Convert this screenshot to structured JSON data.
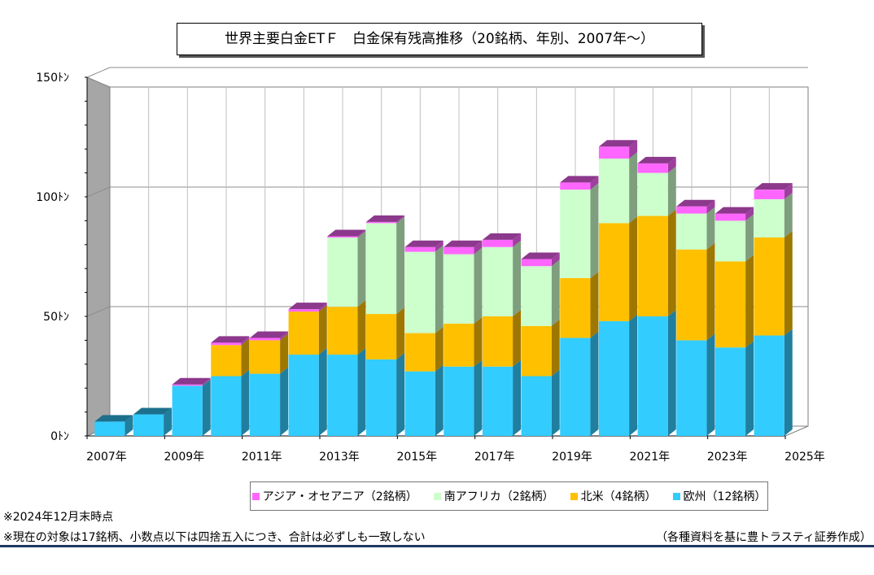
{
  "chart_data": {
    "type": "bar",
    "stacked": true,
    "three_d": true,
    "title": "世界主要白金ETＦ　白金保有残高推移（20銘柄、年別、2007年～）",
    "y_ticks": [
      {
        "value": 0,
        "label": "0ﾄﾝ"
      },
      {
        "value": 50,
        "label": "50ﾄﾝ"
      },
      {
        "value": 100,
        "label": "100ﾄﾝ"
      },
      {
        "value": 150,
        "label": "150ﾄﾝ"
      }
    ],
    "ylim": [
      0,
      150
    ],
    "x_tick_labels": [
      "2007年",
      "2009年",
      "2011年",
      "2013年",
      "2015年",
      "2017年",
      "2019年",
      "2021年",
      "2023年",
      "2025年"
    ],
    "categories": [
      "2007",
      "2008",
      "2009",
      "2010",
      "2011",
      "2012",
      "2013",
      "2014",
      "2015",
      "2016",
      "2017",
      "2018",
      "2019",
      "2020",
      "2021",
      "2022",
      "2023",
      "2024"
    ],
    "grid": true,
    "legend_position": "bottom",
    "series": [
      {
        "name": "欧州（12銘柄）",
        "color": "#33ccff",
        "values": [
          6,
          9,
          21,
          25,
          26,
          34,
          34,
          32,
          27,
          29,
          29,
          25,
          41,
          48,
          50,
          40,
          37,
          42
        ]
      },
      {
        "name": "北米（4銘柄）",
        "color": "#ffc000",
        "values": [
          0,
          0,
          0,
          13,
          14,
          18,
          20,
          19,
          16,
          18,
          21,
          21,
          25,
          41,
          42,
          38,
          36,
          41
        ]
      },
      {
        "name": "南アフリカ（2銘柄）",
        "color": "#ccffcc",
        "values": [
          0,
          0,
          0,
          0,
          0,
          0,
          29,
          38,
          34,
          29,
          29,
          25,
          37,
          27,
          18,
          15,
          17,
          16
        ]
      },
      {
        "name": "アジア・オセアニア（2銘柄）",
        "color": "#ff66ff",
        "values": [
          0,
          0,
          0.5,
          1,
          1,
          1,
          0.5,
          0.5,
          2,
          3,
          3,
          3,
          3,
          5,
          4,
          3,
          3,
          4
        ]
      }
    ]
  },
  "legend": {
    "items": [
      {
        "label": "アジア・オセアニア（2銘柄）",
        "color": "#ff66ff"
      },
      {
        "label": "南アフリカ（2銘柄）",
        "color": "#ccffcc"
      },
      {
        "label": "北米（4銘柄）",
        "color": "#ffc000"
      },
      {
        "label": "欧州（12銘柄）",
        "color": "#33ccff"
      }
    ]
  },
  "notes": {
    "as_of": "※2024年12月末時点",
    "disclaimer": "※現在の対象は17銘柄、小数点以下は四捨五入につき、合計は必ずしも一致しない",
    "source": "（各種資料を基に豊トラスティ証券作成）"
  }
}
